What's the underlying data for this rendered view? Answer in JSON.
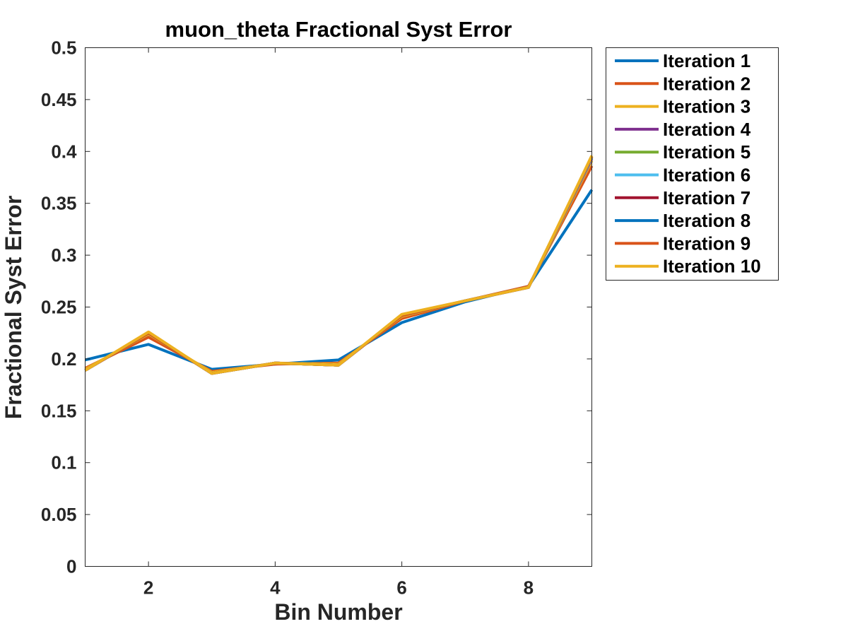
{
  "chart_data": {
    "type": "line",
    "title": "muon_theta Fractional Syst Error",
    "xlabel": "Bin Number",
    "ylabel": "Fractional Syst Error",
    "xlim": [
      1,
      9
    ],
    "ylim": [
      0,
      0.5
    ],
    "xticks": [
      2,
      4,
      6,
      8
    ],
    "yticks": [
      0,
      0.05,
      0.1,
      0.15,
      0.2,
      0.25,
      0.3,
      0.35,
      0.4,
      0.45,
      0.5
    ],
    "ytick_labels": [
      "0",
      "0.05",
      "0.1",
      "0.15",
      "0.2",
      "0.25",
      "0.3",
      "0.35",
      "0.4",
      "0.45",
      "0.5"
    ],
    "grid": false,
    "legend_position": "outside-top-right",
    "x": [
      1,
      2,
      3,
      4,
      5,
      6,
      7,
      8,
      9
    ],
    "series": [
      {
        "name": "Iteration 1",
        "color": "#0072BD",
        "values": [
          0.199,
          0.214,
          0.19,
          0.195,
          0.199,
          0.235,
          0.255,
          0.27,
          0.363
        ]
      },
      {
        "name": "Iteration 2",
        "color": "#D95319",
        "values": [
          0.191,
          0.221,
          0.188,
          0.195,
          0.196,
          0.239,
          0.256,
          0.27,
          0.386
        ]
      },
      {
        "name": "Iteration 3",
        "color": "#EDB120",
        "values": [
          0.19,
          0.224,
          0.187,
          0.196,
          0.195,
          0.241,
          0.256,
          0.269,
          0.391
        ]
      },
      {
        "name": "Iteration 4",
        "color": "#7E2F8E",
        "values": [
          0.189,
          0.225,
          0.186,
          0.196,
          0.194,
          0.242,
          0.256,
          0.269,
          0.393
        ]
      },
      {
        "name": "Iteration 5",
        "color": "#77AC30",
        "values": [
          0.189,
          0.225,
          0.186,
          0.196,
          0.194,
          0.242,
          0.256,
          0.269,
          0.394
        ]
      },
      {
        "name": "Iteration 6",
        "color": "#4DBEEE",
        "values": [
          0.189,
          0.225,
          0.186,
          0.196,
          0.194,
          0.242,
          0.256,
          0.269,
          0.394
        ]
      },
      {
        "name": "Iteration 7",
        "color": "#A2142F",
        "values": [
          0.189,
          0.225,
          0.186,
          0.196,
          0.194,
          0.242,
          0.256,
          0.269,
          0.395
        ]
      },
      {
        "name": "Iteration 8",
        "color": "#0072BD",
        "values": [
          0.189,
          0.225,
          0.186,
          0.196,
          0.194,
          0.242,
          0.256,
          0.269,
          0.395
        ]
      },
      {
        "name": "Iteration 9",
        "color": "#D95319",
        "values": [
          0.189,
          0.225,
          0.186,
          0.196,
          0.194,
          0.242,
          0.256,
          0.269,
          0.395
        ]
      },
      {
        "name": "Iteration 10",
        "color": "#EDB120",
        "values": [
          0.189,
          0.226,
          0.186,
          0.196,
          0.194,
          0.243,
          0.256,
          0.269,
          0.396
        ]
      }
    ]
  }
}
